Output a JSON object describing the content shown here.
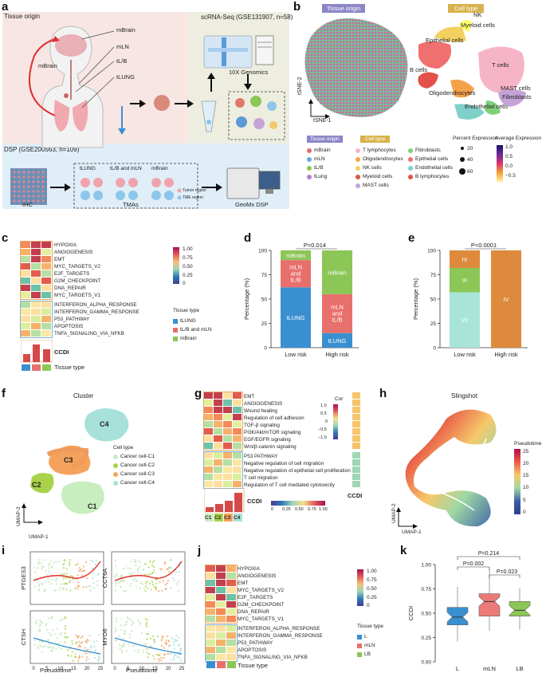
{
  "panel_letters": [
    "a",
    "b",
    "c",
    "d",
    "e",
    "f",
    "g",
    "h",
    "i",
    "j",
    "k"
  ],
  "panel_a": {
    "tissue_origin_title": "Tissue origin",
    "organs": [
      "mBrain",
      "mLN",
      "tL/B",
      "tLUNG"
    ],
    "scrna_title": "scRNA-Seq (GSE131907, n=58)",
    "genomics_label": "10X Genomics",
    "dsp_title": "DSP (GSE200563, n=109)",
    "tma_columns": [
      "tLUNG",
      "tL/B and mLN",
      "mBrain"
    ],
    "tma_legend": [
      "Tumor region",
      "TME region"
    ],
    "ihc_label": "IHC",
    "tmas_label": "TMAs",
    "geomx_label": "GeoMx DSP"
  },
  "panel_b": {
    "tissue_origin_badge": "Tissue origin",
    "cell_type_badge": "Cell type",
    "tsne_y": "tSNE-2",
    "tsne_x": "tSNE-1",
    "cluster_labels": [
      "NK",
      "Myeloid cells",
      "Epithelial cells",
      "T cells",
      "B cells",
      "MAST cells",
      "Oligodendrocytes",
      "Fibroblasts",
      "Endothelial cells"
    ],
    "legend_tissue_title": "Tissue origin",
    "legend_tissue": [
      "mBrain",
      "mLN",
      "tL/B",
      "tLung"
    ],
    "legend_cell_title": "Cell type",
    "legend_cell_col1": [
      "T lymphocytes",
      "Oligodendrocytes",
      "NK cells",
      "Myeloid cells",
      "MAST cells"
    ],
    "legend_cell_col2": [
      "Fibroblasts",
      "Epithelial cells",
      "Endothelial cells",
      "B lymphocytes"
    ],
    "pct_title": "Percent Expression",
    "pct_values": [
      "20",
      "40",
      "60"
    ],
    "avg_title": "Average Expression",
    "avg_ticks": [
      "1.0",
      "0.5",
      "0.0",
      "−0.5"
    ]
  },
  "panel_c": {
    "rows_top": [
      "HYPOXIA",
      "ANGIOGENESIS",
      "EMT",
      "MYC_TARGETS_V2",
      "E2F_TARGETS",
      "G2M_CHECKPOINT",
      "DNA_REPAIR",
      "MYC_TARGETS_V1"
    ],
    "rows_bottom": [
      "INTERFERON_ALPHA_RESPONSE",
      "INTERFERON_GAMMA_RESPONSE",
      "P53_PATHWAY",
      "APOPTOSIS",
      "TNFA_SIGNALING_VIA_NFKB"
    ],
    "ccdi_label": "CCDI",
    "tissue_row_label": "Tissue type",
    "colorbar_ticks": [
      "1.00",
      "0.75",
      "0.50",
      "0.25",
      "0"
    ],
    "legend_title": "Tissue type",
    "legend_items": [
      "tLUNG",
      "tL/B and mLN",
      "mBrain"
    ]
  },
  "panel_d": {
    "pvalue": "P=0.014",
    "ylabel": "Percentage (%)",
    "yticks": [
      "100",
      "75",
      "50",
      "25",
      "0"
    ],
    "categories": [
      "Low risk",
      "High risk"
    ],
    "segment_labels_low": [
      "tLUNG",
      "mLN and tL/B",
      "mBrain"
    ],
    "segment_labels_high": [
      "tLUNG",
      "mLN and tL/B",
      "mBrain"
    ]
  },
  "panel_e": {
    "pvalue": "P<0.0001",
    "ylabel": "Percentage (%)",
    "yticks": [
      "100",
      "75",
      "50",
      "25",
      "0"
    ],
    "categories": [
      "Low risk",
      "High risk"
    ],
    "segment_labels_low": [
      "I/II",
      "III",
      "IV"
    ],
    "segment_labels_high": [
      "IV"
    ]
  },
  "panel_f": {
    "title": "Cluster",
    "cluster_labels": [
      "C4",
      "C3",
      "C2",
      "C1"
    ],
    "legend_title": "Cell type",
    "legend_items": [
      "Cancer cell-C1",
      "Cancer cell-C2",
      "Cancer cell-C3",
      "Cancer cell-C4"
    ],
    "xlabel": "UMAP-1",
    "ylabel": "UMAP-2"
  },
  "panel_g": {
    "rows_top": [
      "EMT",
      "ANGIOGENESIS",
      "Wound healing",
      "Regulation of cell adhesion",
      "TGF-β signaling",
      "PI3K/Akt/mTOR signaling",
      "EGF/EGFR signaling",
      "Wnt/β-catenin signaling"
    ],
    "rows_bottom": [
      "P53 PATHWAY",
      "Negative regulation of cell migration",
      "Negative regulation of epithelial cell proliferation",
      "T cell migration",
      "Regulation of T cell mediated cytotoxicity"
    ],
    "cor_title": "Cor",
    "cor_ticks": [
      "1.0",
      "0.5",
      "0",
      "−0.5",
      "−1.0"
    ],
    "ccdi_label": "CCDI",
    "ccdi_side_label": "CCDI",
    "scale_ticks": [
      "0",
      "0.25",
      "0.50",
      "0.75",
      "1.00"
    ],
    "columns": [
      "C1",
      "C2",
      "C3",
      "C4"
    ]
  },
  "panel_h": {
    "title": "Slingshot",
    "legend_title": "Pseudotime",
    "legend_ticks": [
      "25",
      "20",
      "15",
      "10",
      "5",
      "0"
    ],
    "xlabel": "UMAP-1",
    "ylabel": "UMAP-2"
  },
  "panel_i": {
    "genes": [
      "PTGES3",
      "CCT6A",
      "CTSH",
      "MYO6"
    ],
    "xlabel": "Pseudotime",
    "xticks": [
      "0",
      "5",
      "10",
      "15",
      "20",
      "25"
    ]
  },
  "panel_j": {
    "rows_top": [
      "HYPOXIA",
      "ANGIOGENESIS",
      "EMT",
      "MYC_TARGETS_V2",
      "E2F_TARGETS",
      "G2M_CHECKPOINT",
      "DNA_REPAIR",
      "MYC_TARGETS_V1"
    ],
    "rows_bottom": [
      "INTERFERON_ALPHA_RESPONSE",
      "INTERFERON_GAMMA_RESPONSE",
      "P53_PATHWAY",
      "APOPTOSIS",
      "TNFA_SIGNALING_VIA_NFKB"
    ],
    "tissue_row_label": "Tissue type",
    "colorbar_ticks": [
      "1.00",
      "0.75",
      "0.50",
      "0.25",
      "0"
    ],
    "legend_title": "Tissue type",
    "legend_items": [
      "L",
      "mLN",
      "LB"
    ]
  },
  "panel_k": {
    "ylabel": "CCDI",
    "yticks": [
      "1.00",
      "0.75",
      "0.50",
      "0.25",
      "0.00"
    ],
    "categories": [
      "L",
      "mLN",
      "LB"
    ],
    "pvalues": [
      "P=0.214",
      "P=0.002",
      "P=0.023"
    ]
  },
  "chart_data": [
    {
      "type": "bar",
      "title": "Tissue origin by risk group",
      "pvalue": "P=0.014",
      "categories": [
        "Low risk",
        "High risk"
      ],
      "ylabel": "Percentage (%)",
      "ylim": [
        0,
        100
      ],
      "series": [
        {
          "name": "tLUNG",
          "color": "#3a8fd1",
          "values": [
            62,
            15
          ]
        },
        {
          "name": "mLN and tL/B",
          "color": "#e8706c",
          "values": [
            28,
            40
          ]
        },
        {
          "name": "mBrain",
          "color": "#8cc657",
          "values": [
            10,
            45
          ]
        }
      ]
    },
    {
      "type": "bar",
      "title": "Stage by risk group",
      "pvalue": "P<0.0001",
      "categories": [
        "Low risk",
        "High risk"
      ],
      "ylabel": "Percentage (%)",
      "ylim": [
        0,
        100
      ],
      "series": [
        {
          "name": "I/II",
          "color": "#a8e4d8",
          "values": [
            57,
            0
          ]
        },
        {
          "name": "III",
          "color": "#8cc657",
          "values": [
            25,
            0
          ]
        },
        {
          "name": "IV",
          "color": "#dd8a3c",
          "values": [
            18,
            100
          ]
        }
      ]
    },
    {
      "type": "box",
      "title": "CCDI by tissue",
      "ylabel": "CCDI",
      "ylim": [
        0,
        1
      ],
      "categories": [
        "L",
        "mLN",
        "LB"
      ],
      "colors": [
        "#3a8fd1",
        "#ec7a78",
        "#8cc657"
      ],
      "boxes": [
        {
          "whisker_low": 0.21,
          "q1": 0.38,
          "median": 0.46,
          "q3": 0.56,
          "whisker_high": 0.77
        },
        {
          "whisker_low": 0.32,
          "q1": 0.47,
          "median": 0.62,
          "q3": 0.7,
          "whisker_high": 0.95
        },
        {
          "whisker_low": 0.33,
          "q1": 0.47,
          "median": 0.53,
          "q3": 0.62,
          "whisker_high": 0.76
        }
      ]
    }
  ]
}
